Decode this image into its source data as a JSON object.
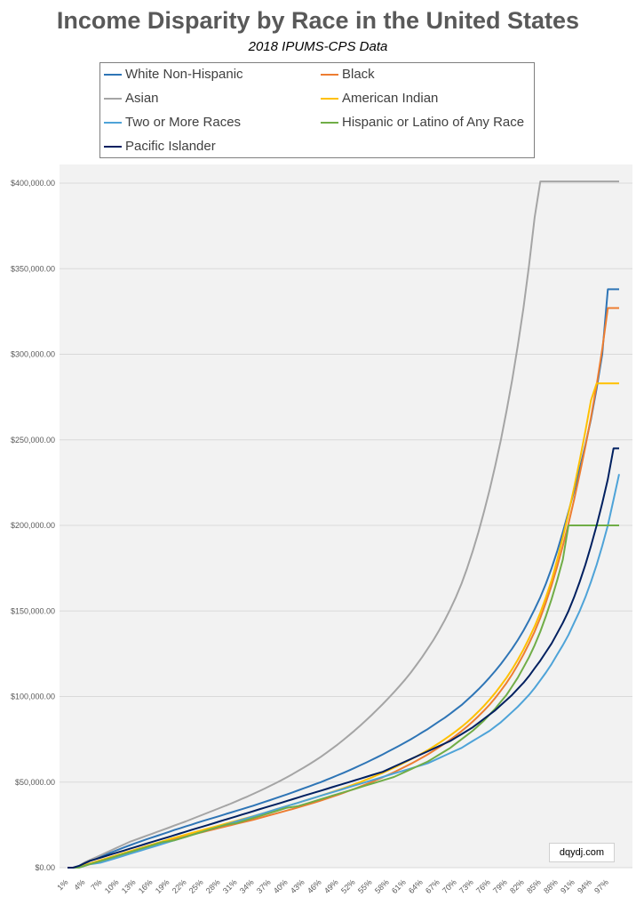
{
  "chart_data": {
    "type": "line",
    "title": "Income Disparity by Race in the United States",
    "subtitle": "2018 IPUMS-CPS Data",
    "xlabel": "",
    "ylabel": "",
    "watermark": "dqydj.com",
    "grid": true,
    "legend_position": "top",
    "ylim": [
      0,
      400000
    ],
    "y_ticks": [
      {
        "value": 0,
        "label": "$0.00"
      },
      {
        "value": 50000,
        "label": "$50,000.00"
      },
      {
        "value": 100000,
        "label": "$100,000.00"
      },
      {
        "value": 150000,
        "label": "$150,000.00"
      },
      {
        "value": 200000,
        "label": "$200,000.00"
      },
      {
        "value": 250000,
        "label": "$250,000.00"
      },
      {
        "value": 300000,
        "label": "$300,000.00"
      },
      {
        "value": 350000,
        "label": "$350,000.00"
      },
      {
        "value": 400000,
        "label": "$400,000.00"
      }
    ],
    "x_tick_labels": [
      "1%",
      "4%",
      "7%",
      "10%",
      "13%",
      "16%",
      "19%",
      "22%",
      "25%",
      "28%",
      "31%",
      "34%",
      "37%",
      "40%",
      "43%",
      "46%",
      "49%",
      "52%",
      "55%",
      "58%",
      "61%",
      "64%",
      "67%",
      "70%",
      "73%",
      "76%",
      "79%",
      "82%",
      "85%",
      "88%",
      "91%",
      "94%",
      "97%"
    ],
    "x": [
      1,
      2,
      3,
      4,
      5,
      6,
      7,
      8,
      9,
      10,
      11,
      12,
      13,
      14,
      15,
      16,
      17,
      18,
      19,
      20,
      21,
      22,
      23,
      24,
      25,
      26,
      27,
      28,
      29,
      30,
      31,
      32,
      33,
      34,
      35,
      36,
      37,
      38,
      39,
      40,
      41,
      42,
      43,
      44,
      45,
      46,
      47,
      48,
      49,
      50,
      51,
      52,
      53,
      54,
      55,
      56,
      57,
      58,
      59,
      60,
      61,
      62,
      63,
      64,
      65,
      66,
      67,
      68,
      69,
      70,
      71,
      72,
      73,
      74,
      75,
      76,
      77,
      78,
      79,
      80,
      81,
      82,
      83,
      84,
      85,
      86,
      87,
      88,
      89,
      90,
      91,
      92,
      93,
      94,
      95,
      96,
      97,
      98,
      99
    ],
    "series": [
      {
        "name": "White Non-Hispanic",
        "color": "#2e75b6",
        "values": [
          0,
          0,
          1000,
          2500,
          4000,
          5200,
          6500,
          8000,
          9200,
          10500,
          11800,
          13000,
          14200,
          15400,
          16500,
          17600,
          18700,
          19800,
          20900,
          22000,
          23000,
          24100,
          25100,
          26200,
          27200,
          28200,
          29200,
          30200,
          31200,
          32200,
          33200,
          34200,
          35200,
          36200,
          37300,
          38400,
          39500,
          40600,
          41700,
          42800,
          44000,
          45200,
          46400,
          47600,
          48800,
          50000,
          51300,
          52600,
          54000,
          55400,
          56800,
          58300,
          59800,
          61300,
          62900,
          64500,
          66200,
          67900,
          69600,
          71400,
          73200,
          75000,
          77000,
          79000,
          81000,
          83200,
          85400,
          87600,
          90000,
          92500,
          95000,
          98000,
          101000,
          104200,
          107600,
          111200,
          115000,
          119000,
          123500,
          128000,
          133000,
          138500,
          144500,
          151000,
          158000,
          166000,
          175000,
          185000,
          196000,
          208000,
          220000,
          233000,
          247000,
          262000,
          280000,
          300000,
          338000,
          338000,
          338000
        ]
      },
      {
        "name": "Black",
        "color": "#ed7d31",
        "values": [
          0,
          0,
          500,
          1500,
          2500,
          3500,
          4500,
          5500,
          6500,
          7500,
          8500,
          9500,
          10500,
          11500,
          12500,
          13500,
          14300,
          15200,
          16000,
          16800,
          17600,
          18400,
          19200,
          20000,
          20800,
          21600,
          22400,
          23200,
          24000,
          24800,
          25600,
          26400,
          27200,
          28000,
          28900,
          29800,
          30700,
          31600,
          32500,
          33400,
          34300,
          35200,
          36200,
          37200,
          38200,
          39200,
          40300,
          41400,
          42500,
          43700,
          44900,
          46100,
          47400,
          48700,
          50000,
          51400,
          52800,
          54300,
          55800,
          57400,
          59000,
          60700,
          62500,
          64300,
          66200,
          68200,
          70300,
          72500,
          74800,
          77200,
          79800,
          82500,
          85400,
          88500,
          91800,
          95300,
          99200,
          103500,
          108000,
          113000,
          118500,
          124500,
          131000,
          138000,
          146000,
          155000,
          165000,
          176000,
          188000,
          201000,
          215000,
          230000,
          246000,
          263000,
          282000,
          303000,
          327000,
          327000,
          327000
        ]
      },
      {
        "name": "Asian",
        "color": "#a5a5a5",
        "values": [
          0,
          0,
          1000,
          3000,
          4500,
          6000,
          7500,
          9000,
          10500,
          12000,
          13500,
          15000,
          16200,
          17400,
          18600,
          19800,
          21000,
          22200,
          23400,
          24600,
          25800,
          27000,
          28300,
          29600,
          30900,
          32200,
          33500,
          34800,
          36100,
          37400,
          38800,
          40200,
          41600,
          43100,
          44600,
          46200,
          47800,
          49400,
          51100,
          52900,
          54700,
          56600,
          58500,
          60500,
          62600,
          64800,
          67100,
          69500,
          72000,
          74600,
          77300,
          80100,
          83000,
          86000,
          89100,
          92300,
          95600,
          99000,
          102500,
          106200,
          110000,
          114000,
          118500,
          123000,
          128000,
          133000,
          138500,
          144500,
          151000,
          158000,
          166000,
          175000,
          185000,
          196000,
          208000,
          221000,
          235000,
          250000,
          267000,
          285000,
          305000,
          327000,
          352000,
          380000,
          401000,
          401000,
          401000,
          401000,
          401000,
          401000,
          401000,
          401000,
          401000,
          401000,
          401000,
          401000,
          401000,
          401000,
          401000
        ]
      },
      {
        "name": "American Indian",
        "color": "#ffc000",
        "values": [
          0,
          0,
          500,
          1500,
          2500,
          3500,
          4500,
          5500,
          6500,
          7500,
          8500,
          9500,
          10500,
          11500,
          12500,
          13500,
          14500,
          15500,
          16500,
          17500,
          18400,
          19300,
          20200,
          21100,
          22000,
          22900,
          23800,
          24700,
          25600,
          26500,
          27400,
          28300,
          29200,
          30100,
          31000,
          32000,
          33000,
          34000,
          35000,
          36000,
          37000,
          38000,
          39000,
          40000,
          41000,
          42000,
          43100,
          44200,
          45300,
          46400,
          47600,
          48800,
          50000,
          51300,
          52600,
          54000,
          55400,
          56900,
          58400,
          60000,
          61600,
          63300,
          65000,
          66800,
          68700,
          70700,
          72800,
          75000,
          77300,
          79700,
          82300,
          85000,
          88000,
          91200,
          94600,
          98300,
          102200,
          106500,
          111000,
          116000,
          121500,
          127500,
          134000,
          141000,
          149000,
          158000,
          168000,
          180000,
          193000,
          207000,
          222000,
          238000,
          255000,
          273000,
          283000,
          283000,
          283000,
          283000,
          283000
        ]
      },
      {
        "name": "Two or More Races",
        "color": "#4ea3d8",
        "values": [
          0,
          0,
          0,
          1000,
          2000,
          2500,
          3000,
          4000,
          5000,
          6000,
          7000,
          8000,
          9000,
          10000,
          11000,
          12000,
          13000,
          14000,
          15000,
          16000,
          17000,
          18000,
          19000,
          20000,
          21000,
          22000,
          23000,
          24000,
          25000,
          26000,
          27000,
          28000,
          29000,
          30000,
          31000,
          32000,
          33000,
          34000,
          35000,
          36000,
          37000,
          38000,
          39000,
          40000,
          41000,
          42000,
          43000,
          44000,
          45000,
          46000,
          47000,
          48000,
          49000,
          50000,
          51000,
          52000,
          53000,
          54000,
          55000,
          56000,
          57000,
          58000,
          59000,
          60000,
          61000,
          62500,
          64000,
          65500,
          67000,
          68500,
          70000,
          72000,
          74000,
          76000,
          78000,
          80000,
          82500,
          85000,
          88000,
          91000,
          94000,
          97500,
          101000,
          105000,
          109500,
          114000,
          119000,
          124500,
          130000,
          136000,
          143000,
          150000,
          158000,
          167000,
          177000,
          188000,
          200000,
          215000,
          230000
        ]
      },
      {
        "name": "Hispanic or Latino of Any Race",
        "color": "#70ad47",
        "values": [
          0,
          0,
          0,
          1000,
          2000,
          3000,
          4000,
          5000,
          6000,
          7000,
          8000,
          9000,
          10000,
          11000,
          12000,
          13000,
          14000,
          15000,
          15500,
          16000,
          17000,
          18000,
          19000,
          20000,
          21000,
          22000,
          23000,
          24000,
          25000,
          25500,
          26000,
          27000,
          28000,
          29000,
          30000,
          31000,
          32000,
          33000,
          34000,
          35000,
          35500,
          36000,
          37000,
          38000,
          39000,
          40000,
          41000,
          42000,
          43000,
          44000,
          45000,
          46000,
          47000,
          48000,
          49000,
          50000,
          51000,
          52000,
          53000,
          54500,
          56000,
          57500,
          59000,
          60500,
          62000,
          64000,
          66000,
          68000,
          70000,
          72500,
          75000,
          77500,
          80000,
          83000,
          86000,
          89500,
          93000,
          97000,
          101000,
          106000,
          111000,
          117000,
          123000,
          130000,
          138000,
          147000,
          157000,
          168000,
          180000,
          200000,
          200000,
          200000,
          200000,
          200000,
          200000,
          200000,
          200000,
          200000,
          200000
        ]
      },
      {
        "name": "Pacific Islander",
        "color": "#002060",
        "values": [
          0,
          0,
          1000,
          2500,
          4000,
          5000,
          6000,
          7000,
          8000,
          9000,
          10000,
          11000,
          12000,
          13000,
          14000,
          15000,
          16000,
          17000,
          18000,
          19000,
          20000,
          21000,
          22000,
          23000,
          24000,
          25000,
          26000,
          27000,
          28000,
          29000,
          30000,
          31000,
          32000,
          33000,
          34000,
          35000,
          36000,
          37000,
          38000,
          39000,
          40000,
          41000,
          42000,
          43000,
          44000,
          45000,
          46000,
          47000,
          48000,
          49000,
          50000,
          51000,
          52000,
          53000,
          54000,
          55000,
          56000,
          57500,
          59000,
          60500,
          62000,
          63500,
          65000,
          66500,
          68000,
          69500,
          71000,
          72500,
          74000,
          76000,
          78000,
          80000,
          82000,
          84500,
          87000,
          89500,
          92000,
          95000,
          98000,
          101000,
          104500,
          108000,
          112000,
          116500,
          121000,
          126000,
          131000,
          137000,
          143000,
          150000,
          158000,
          167000,
          177000,
          188000,
          200000,
          213000,
          227000,
          245000,
          245000
        ]
      }
    ]
  }
}
